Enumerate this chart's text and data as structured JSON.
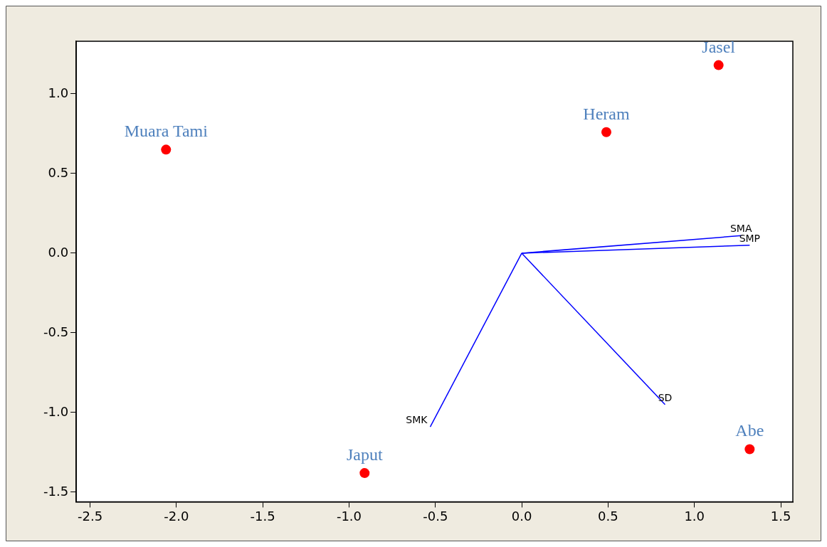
{
  "chart_data": {
    "type": "scatter",
    "series": [
      {
        "type": "scatter",
        "color": "#ff0000",
        "marker": "circle",
        "x": [
          -2.06,
          0.49,
          1.14,
          -0.91,
          1.32
        ],
        "values": [
          0.65,
          0.76,
          1.18,
          -1.38,
          -1.23
        ],
        "value_labels": [
          "Muara Tami",
          "Heram",
          "Jasel",
          "Japut",
          "Abe"
        ]
      },
      {
        "type": "line",
        "name": "SMA",
        "color": "#0000ff",
        "marker": "none",
        "x": [
          0,
          1.27
        ],
        "values": [
          0,
          0.11
        ]
      },
      {
        "type": "line",
        "name": "SMP",
        "color": "#0000ff",
        "marker": "none",
        "x": [
          0,
          1.32
        ],
        "values": [
          0,
          0.05
        ]
      },
      {
        "type": "line",
        "name": "SD",
        "color": "#0000ff",
        "marker": "none",
        "x": [
          0,
          0.83
        ],
        "values": [
          0,
          -0.95
        ]
      },
      {
        "type": "line",
        "name": "SMK",
        "color": "#0000ff",
        "marker": "none",
        "x": [
          0,
          -0.53
        ],
        "values": [
          0,
          -1.09
        ]
      }
    ],
    "xlim": [
      -2.58,
      1.57
    ],
    "ylim": [
      -1.56,
      1.33
    ],
    "xticks": [
      {
        "value": -2.5,
        "label": "-2.5"
      },
      {
        "value": -2,
        "label": "-2.0"
      },
      {
        "value": -1.5,
        "label": "-1.5"
      },
      {
        "value": -1,
        "label": "-1.0"
      },
      {
        "value": -0.5,
        "label": "-0.5"
      },
      {
        "value": 0,
        "label": "0.0"
      },
      {
        "value": 0.5,
        "label": "0.5"
      },
      {
        "value": 1,
        "label": "1.0"
      },
      {
        "value": 1.5,
        "label": "1.5"
      }
    ],
    "yticks": [
      {
        "value": -1.5,
        "label": "-1.5"
      },
      {
        "value": -1,
        "label": "-1.0"
      },
      {
        "value": -0.5,
        "label": "-0.5"
      },
      {
        "value": 0,
        "label": "0.0"
      },
      {
        "value": 0.5,
        "label": "0.5"
      },
      {
        "value": 1,
        "label": "1.0"
      }
    ],
    "grid": false,
    "legend": false
  }
}
